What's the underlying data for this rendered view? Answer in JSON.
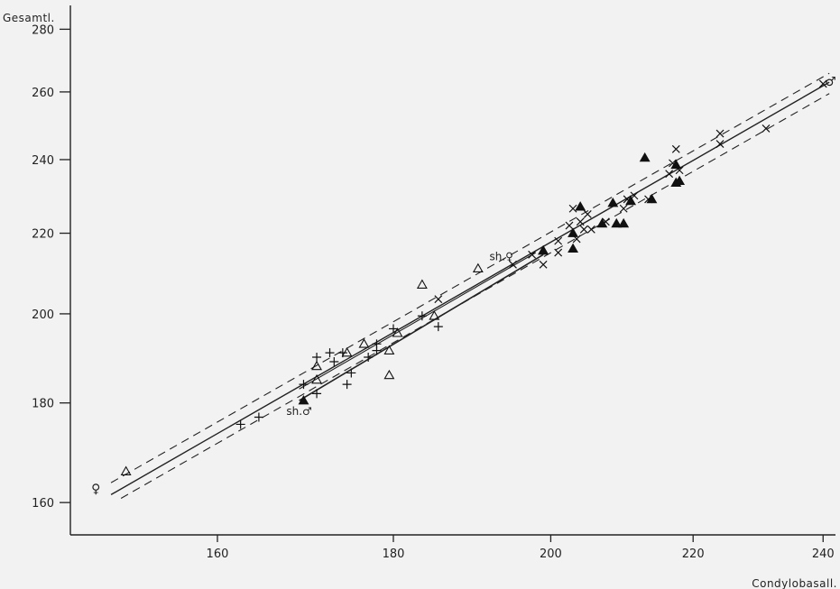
{
  "chart_data": {
    "type": "scatter",
    "xlabel": "Condylobasall.",
    "ylabel": "Gesamtl.",
    "xlim": [
      145,
      242
    ],
    "ylim": [
      154,
      288
    ],
    "x_ticks": [
      160,
      180,
      200,
      220,
      240
    ],
    "y_ticks": [
      160,
      180,
      200,
      220,
      240,
      260,
      280
    ],
    "x_scale": "log",
    "y_scale": "log",
    "grid": false,
    "annotations": [
      {
        "text": "sh.♀",
        "x": 193.5,
        "y": 214
      },
      {
        "text": "sh.♂",
        "x": 169,
        "y": 178.2
      },
      {
        "text": "♀",
        "x": 147.5,
        "y": 162.5
      },
      {
        "text": "♂",
        "x": 241.2,
        "y": 263
      }
    ],
    "series": [
      {
        "marker": "open-triangle",
        "points": [
          [
            150.5,
            166
          ],
          [
            171,
            185
          ],
          [
            171,
            188
          ],
          [
            174.5,
            191
          ],
          [
            176.5,
            193
          ],
          [
            179.5,
            186
          ],
          [
            179.5,
            191.5
          ],
          [
            180.5,
            195.5
          ],
          [
            183.5,
            207
          ],
          [
            185,
            199.5
          ],
          [
            190.5,
            211
          ],
          [
            199,
            215.5
          ]
        ]
      },
      {
        "marker": "filled-triangle",
        "points": [
          [
            169.5,
            180.5
          ],
          [
            199,
            215.5
          ],
          [
            203,
            216
          ],
          [
            203,
            220
          ],
          [
            204,
            227
          ],
          [
            207,
            222.5
          ],
          [
            208.5,
            228
          ],
          [
            209,
            222.5
          ],
          [
            210,
            222.5
          ],
          [
            211,
            228.5
          ],
          [
            213,
            240.5
          ],
          [
            214,
            229
          ],
          [
            217.5,
            233.5
          ],
          [
            217.5,
            238.5
          ],
          [
            218,
            234
          ]
        ]
      },
      {
        "marker": "plus",
        "points": [
          [
            162.5,
            175.5
          ],
          [
            164.5,
            177
          ],
          [
            169.5,
            184
          ],
          [
            171,
            182
          ],
          [
            171,
            190
          ],
          [
            172.5,
            191
          ],
          [
            173,
            189
          ],
          [
            174,
            191
          ],
          [
            174.5,
            184
          ],
          [
            175,
            186.5
          ],
          [
            177,
            190
          ],
          [
            178,
            193
          ],
          [
            178,
            191.5
          ],
          [
            180,
            196.5
          ],
          [
            183.5,
            199.5
          ],
          [
            185.5,
            197
          ]
        ]
      },
      {
        "marker": "cross",
        "points": [
          [
            185.5,
            203.5
          ],
          [
            195,
            212
          ],
          [
            197.5,
            214.5
          ],
          [
            199,
            212
          ],
          [
            201,
            215
          ],
          [
            201,
            218
          ],
          [
            202.5,
            222
          ],
          [
            203,
            226.5
          ],
          [
            203.5,
            218.5
          ],
          [
            204,
            223
          ],
          [
            204.5,
            221
          ],
          [
            205,
            225
          ],
          [
            205.5,
            221
          ],
          [
            207.5,
            223
          ],
          [
            210,
            226.5
          ],
          [
            210.5,
            229
          ],
          [
            211.5,
            230
          ],
          [
            213.5,
            229
          ],
          [
            216.5,
            236
          ],
          [
            217,
            239
          ],
          [
            217.5,
            243
          ],
          [
            218,
            237
          ],
          [
            224,
            244.5
          ],
          [
            224,
            247.5
          ],
          [
            231,
            249
          ],
          [
            240,
            262.5
          ]
        ]
      }
    ]
  }
}
